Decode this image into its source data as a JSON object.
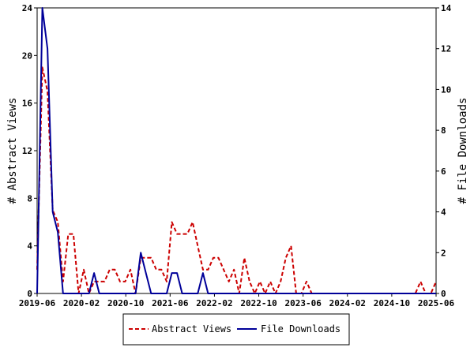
{
  "chart_data": {
    "type": "line",
    "x_labels": [
      "2019-06",
      "2020-02",
      "2020-10",
      "2021-06",
      "2022-02",
      "2022-10",
      "2023-06",
      "2024-02",
      "2024-10",
      "2025-06"
    ],
    "y_left": {
      "label": "# Abstract Views",
      "ticks": [
        0,
        4,
        8,
        12,
        16,
        20,
        24
      ],
      "lim": [
        0,
        24
      ]
    },
    "y_right": {
      "label": "# File Downloads",
      "ticks": [
        0,
        2,
        4,
        6,
        8,
        10,
        12,
        14
      ],
      "lim": [
        0,
        14
      ]
    },
    "grid": false,
    "legend_position": "bottom",
    "series": [
      {
        "name": "Abstract Views",
        "axis": "left",
        "color": "#cc0000",
        "style": "dashed",
        "values": [
          2,
          19,
          17,
          7,
          6,
          1,
          5,
          5,
          0,
          2,
          0,
          1,
          1,
          1,
          2,
          2,
          1,
          1,
          2,
          0,
          3,
          3,
          3,
          2,
          2,
          1,
          6,
          5,
          5,
          5,
          6,
          4,
          2,
          2,
          3,
          3,
          2,
          1,
          2,
          0,
          3,
          1,
          0,
          1,
          0,
          1,
          0,
          1,
          3,
          4,
          0,
          0,
          1,
          0,
          0,
          0,
          0,
          0,
          0,
          0,
          0,
          0,
          0,
          0,
          0,
          0,
          0,
          0,
          0,
          0,
          0,
          0,
          0,
          0,
          1,
          0,
          0,
          1
        ]
      },
      {
        "name": "File Downloads",
        "axis": "right",
        "color": "#000099",
        "style": "solid",
        "values": [
          0,
          14,
          12,
          4,
          3,
          0,
          0,
          0,
          0,
          0,
          0,
          1,
          0,
          0,
          0,
          0,
          0,
          0,
          0,
          0,
          2,
          1,
          0,
          0,
          0,
          0,
          1,
          1,
          0,
          0,
          0,
          0,
          1,
          0,
          0,
          0,
          0,
          0,
          0,
          0,
          0,
          0,
          0,
          0,
          0,
          0,
          0,
          0,
          0,
          0,
          0,
          0,
          0,
          0,
          0,
          0,
          0,
          0,
          0,
          0,
          0,
          0,
          0,
          0,
          0,
          0,
          0,
          0,
          0,
          0,
          0,
          0,
          0,
          0,
          0,
          0,
          0,
          0
        ]
      }
    ]
  }
}
